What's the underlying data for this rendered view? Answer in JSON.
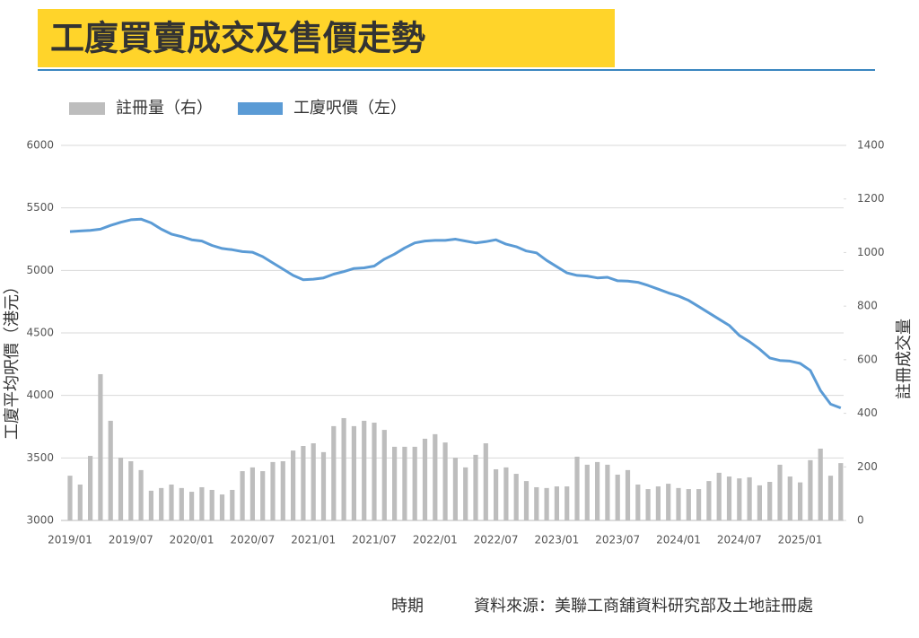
{
  "chart_data": {
    "type": "combo",
    "title": "工廈買賣成交及售價走勢",
    "x_label": "時期",
    "y_label": "工廈平均呎價（港元）",
    "y2_label": "註冊成交量",
    "source": "資料來源：美聯工商舖資料研究部及土地註冊處",
    "categories": [
      "2019/01",
      null,
      null,
      null,
      null,
      null,
      "2019/07",
      null,
      null,
      null,
      null,
      null,
      "2020/01",
      null,
      null,
      null,
      null,
      null,
      "2020/07",
      null,
      null,
      null,
      null,
      null,
      "2021/01",
      null,
      null,
      null,
      null,
      null,
      "2021/07",
      null,
      null,
      null,
      null,
      null,
      "2022/01",
      null,
      null,
      null,
      null,
      null,
      "2022/07",
      null,
      null,
      null,
      null,
      null,
      "2023/01",
      null,
      null,
      null,
      null,
      null,
      "2023/07",
      null,
      null,
      null,
      null,
      null,
      "2024/01",
      null,
      null,
      null,
      null,
      null,
      "2024/07",
      null,
      null,
      null,
      null,
      null,
      "2025/01",
      null,
      null,
      null,
      null
    ],
    "ylim": [
      3000,
      6000
    ],
    "yticks": [
      3000,
      3500,
      4000,
      4500,
      5000,
      5500,
      6000
    ],
    "y2lim": [
      0,
      1400
    ],
    "y2ticks": [
      0,
      200,
      400,
      600,
      800,
      1000,
      1200,
      1400
    ],
    "grid": true,
    "legend": "top-left",
    "series": [
      {
        "name": "註冊量（右）",
        "type": "bar",
        "axis": "y2",
        "color": "#bdbdbd",
        "values": [
          167,
          134,
          241,
          546,
          372,
          234,
          221,
          188,
          111,
          121,
          134,
          121,
          107,
          124,
          114,
          97,
          114,
          184,
          198,
          184,
          218,
          221,
          261,
          278,
          288,
          255,
          352,
          382,
          352,
          372,
          365,
          338,
          275,
          275,
          275,
          305,
          322,
          291,
          234,
          198,
          245,
          288,
          191,
          198,
          174,
          147,
          124,
          121,
          127,
          127,
          238,
          208,
          218,
          208,
          171,
          188,
          134,
          117,
          127,
          137,
          121,
          117,
          117,
          147,
          178,
          164,
          157,
          161,
          131,
          144,
          208,
          164,
          142,
          225,
          268,
          167,
          214
        ]
      },
      {
        "name": "工廈呎價（左）",
        "type": "line",
        "axis": "y",
        "color": "#5b9bd5",
        "values": [
          5310,
          5315,
          5320,
          5330,
          5360,
          5385,
          5405,
          5410,
          5380,
          5330,
          5290,
          5270,
          5245,
          5235,
          5200,
          5175,
          5165,
          5150,
          5145,
          5110,
          5060,
          5010,
          4960,
          4925,
          4930,
          4940,
          4970,
          4990,
          5015,
          5020,
          5035,
          5090,
          5130,
          5180,
          5220,
          5235,
          5240,
          5240,
          5250,
          5235,
          5220,
          5230,
          5245,
          5210,
          5190,
          5155,
          5140,
          5080,
          5030,
          4980,
          4960,
          4955,
          4940,
          4945,
          4917,
          4915,
          4905,
          4880,
          4850,
          4820,
          4795,
          4760,
          4710,
          4660,
          4610,
          4560,
          4480,
          4430,
          4370,
          4300,
          4280,
          4275,
          4256,
          4200,
          4040,
          3930,
          3900
        ]
      }
    ]
  }
}
